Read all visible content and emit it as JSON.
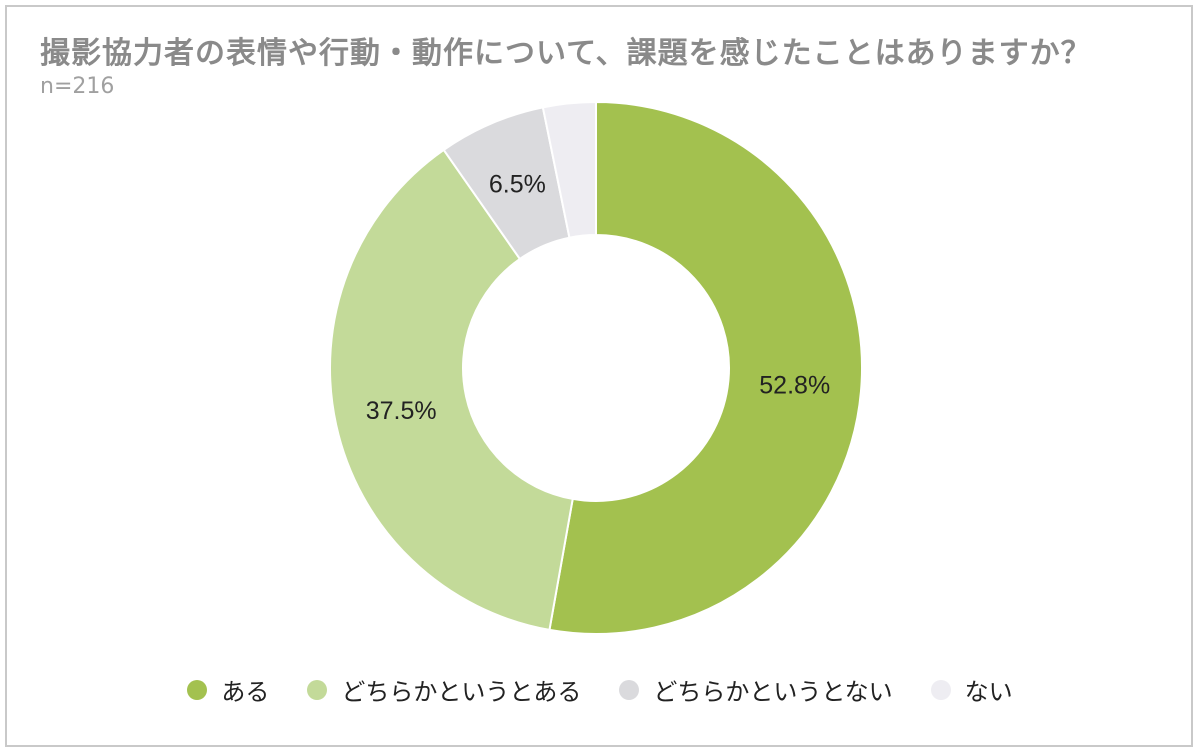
{
  "header": {
    "title": "撮影協力者の表情や行動・動作について、課題を感じたことはありますか？",
    "sample": "n=216"
  },
  "colors": {
    "title": "#8a8a8a",
    "subtitle": "#a0a0a0",
    "label": "#222222",
    "background": "#ffffff",
    "border": "#c9c9c9"
  },
  "chart_data": {
    "type": "pie",
    "variant": "donut",
    "title": "撮影協力者の表情や行動・動作について、課題を感じたことはありますか？",
    "subtitle": "n=216",
    "legend_position": "bottom",
    "slices": [
      {
        "label": "ある",
        "value": 52.8,
        "display": "52.8%",
        "color": "#a3c14f"
      },
      {
        "label": "どちらかというとある",
        "value": 37.5,
        "display": "37.5%",
        "color": "#c3da99"
      },
      {
        "label": "どちらかというとない",
        "value": 6.5,
        "display": "6.5%",
        "color": "#dadadd"
      },
      {
        "label": "ない",
        "value": 3.2,
        "display": "",
        "color": "#eeedf2"
      }
    ]
  }
}
